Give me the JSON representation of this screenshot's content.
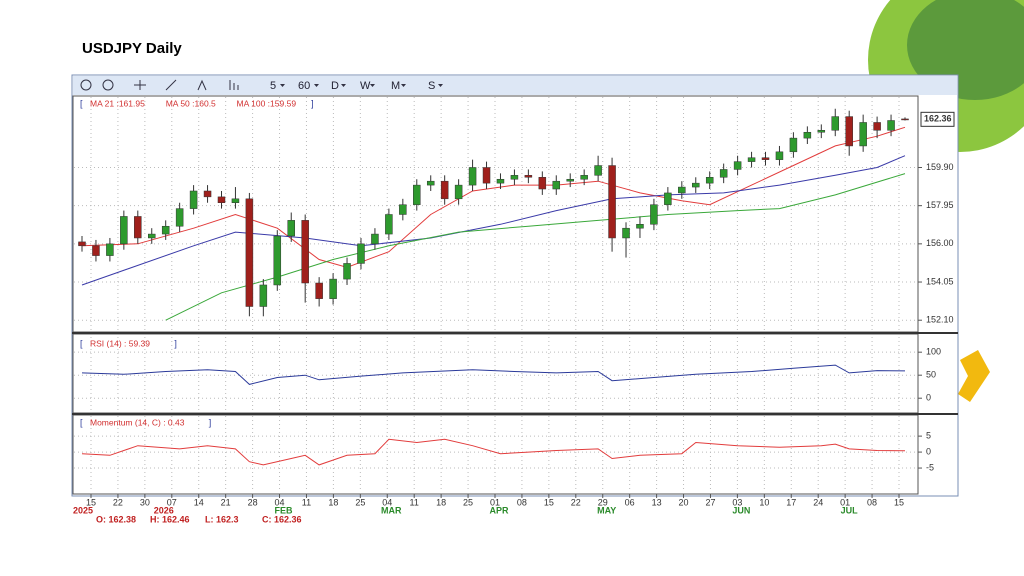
{
  "title": "USDJPY Daily",
  "toolbar": [
    "5",
    "60",
    "D",
    "W",
    "M",
    "S"
  ],
  "brackets": [
    "[",
    "]"
  ],
  "readout": [
    "O: 162.38",
    "H: 162.46",
    "L: 162.3",
    "C: 162.36"
  ],
  "x_axis": {
    "days": [
      "15",
      "22",
      "30",
      "07",
      "14",
      "21",
      "28",
      "04",
      "11",
      "18",
      "25",
      "04",
      "11",
      "18",
      "25",
      "01",
      "08",
      "15",
      "22",
      "29",
      "06",
      "13",
      "20",
      "27",
      "03",
      "10",
      "17",
      "24",
      "01",
      "08",
      "15"
    ],
    "months": [
      "2025",
      null,
      null,
      "2026",
      null,
      null,
      null,
      "FEB",
      null,
      null,
      null,
      "MAR",
      null,
      null,
      null,
      "APR",
      null,
      null,
      null,
      "MAY",
      null,
      null,
      null,
      null,
      "JUN",
      null,
      null,
      null,
      "JUL",
      null,
      null
    ]
  },
  "chart_data": [
    {
      "type": "candlestick",
      "xlim": [
        0,
        59
      ],
      "ylim": [
        151.6,
        163.5
      ],
      "grid": true,
      "up_color": "#2e9a2e",
      "down_color": "#a0201c",
      "yticks": [
        {
          "value": 152.1,
          "label": "152.10"
        },
        {
          "value": 154.05,
          "label": "154.05"
        },
        {
          "value": 156,
          "label": "156.00"
        },
        {
          "value": 157.95,
          "label": "157.95"
        },
        {
          "value": 159.9,
          "label": "159.90"
        }
      ],
      "last_value": 162.36,
      "open": [
        156.1,
        155.9,
        155.4,
        156.0,
        157.4,
        156.3,
        156.5,
        156.9,
        157.8,
        158.7,
        158.4,
        158.1,
        158.3,
        152.8,
        153.9,
        156.4,
        157.2,
        154.0,
        153.2,
        154.2,
        155.0,
        156.0,
        156.5,
        157.5,
        158.0,
        159.0,
        159.2,
        158.3,
        159.0,
        159.9,
        159.1,
        159.3,
        159.5,
        159.4,
        158.8,
        159.2,
        159.3,
        159.5,
        160.0,
        156.3,
        156.8,
        157.0,
        158.0,
        158.6,
        158.9,
        159.1,
        159.4,
        159.8,
        160.2,
        160.4,
        160.3,
        160.7,
        161.4,
        161.7,
        161.8,
        162.5,
        161.0,
        162.2,
        161.8,
        162.38
      ],
      "high": [
        156.4,
        156.2,
        156.3,
        157.7,
        157.7,
        156.8,
        157.2,
        158.1,
        159.0,
        159.0,
        158.7,
        158.9,
        158.6,
        154.2,
        156.7,
        157.6,
        157.5,
        154.3,
        154.5,
        155.3,
        156.3,
        156.8,
        157.8,
        158.3,
        159.3,
        159.5,
        159.5,
        159.3,
        160.3,
        160.2,
        159.6,
        159.8,
        159.8,
        159.7,
        159.5,
        159.6,
        159.8,
        160.5,
        160.4,
        157.1,
        157.4,
        158.3,
        158.9,
        159.2,
        159.4,
        159.7,
        160.1,
        160.5,
        160.7,
        160.7,
        161.0,
        161.7,
        162.0,
        162.1,
        162.9,
        162.8,
        162.6,
        162.5,
        162.6,
        162.46
      ],
      "low": [
        155.6,
        155.1,
        155.1,
        155.7,
        156.0,
        156.0,
        156.2,
        156.6,
        157.5,
        158.1,
        157.8,
        157.8,
        152.3,
        152.3,
        153.6,
        156.1,
        153.0,
        152.8,
        152.9,
        153.9,
        154.7,
        155.7,
        156.2,
        157.2,
        157.7,
        158.7,
        158.0,
        158.0,
        158.7,
        158.8,
        158.8,
        159.0,
        159.1,
        158.5,
        158.5,
        158.9,
        159.0,
        159.2,
        155.6,
        155.3,
        156.3,
        156.7,
        157.7,
        158.3,
        158.6,
        158.8,
        159.1,
        159.5,
        159.9,
        160.0,
        160.0,
        160.4,
        161.1,
        161.4,
        161.5,
        160.5,
        160.7,
        161.4,
        161.5,
        162.3
      ],
      "close": [
        155.9,
        155.4,
        156.0,
        157.4,
        156.3,
        156.5,
        156.9,
        157.8,
        158.7,
        158.4,
        158.1,
        158.3,
        152.8,
        153.9,
        156.4,
        157.2,
        154.0,
        153.2,
        154.2,
        155.0,
        156.0,
        156.5,
        157.5,
        158.0,
        159.0,
        159.2,
        158.3,
        159.0,
        159.9,
        159.1,
        159.3,
        159.5,
        159.4,
        158.8,
        159.2,
        159.3,
        159.5,
        160.0,
        156.3,
        156.8,
        157.0,
        158.0,
        158.6,
        158.9,
        159.1,
        159.4,
        159.8,
        160.2,
        160.4,
        160.3,
        160.7,
        161.4,
        161.7,
        161.8,
        162.5,
        161.0,
        162.2,
        161.8,
        162.3,
        162.36
      ],
      "lines": [
        {
          "name": "MA 21 :161.95",
          "color": "#e23c3c",
          "x": [
            0,
            4,
            8,
            11,
            14,
            17,
            19,
            22,
            25,
            28,
            31,
            34,
            37,
            40,
            43,
            45,
            48,
            51,
            54,
            57,
            59
          ],
          "values": [
            155.9,
            156.0,
            156.8,
            157.5,
            156.8,
            155.2,
            154.8,
            155.6,
            157.5,
            158.7,
            159.0,
            159.0,
            159.2,
            158.6,
            158.2,
            158.0,
            159.0,
            160.0,
            161.0,
            161.5,
            161.95
          ]
        },
        {
          "name": "MA 50 :160.5",
          "color": "#3a3aa8",
          "x": [
            0,
            8,
            11,
            16,
            20,
            25,
            30,
            34,
            38,
            42,
            46,
            50,
            54,
            57,
            59
          ],
          "values": [
            153.9,
            155.9,
            156.6,
            156.3,
            155.9,
            156.3,
            157.0,
            157.7,
            158.3,
            158.5,
            158.6,
            159.0,
            159.5,
            159.9,
            160.5
          ]
        },
        {
          "name": "MA 100 :159.59",
          "color": "#3aa83a",
          "x": [
            6,
            10,
            14,
            18,
            22,
            27,
            32,
            37,
            42,
            47,
            50,
            54,
            59
          ],
          "values": [
            152.1,
            153.5,
            154.3,
            155.2,
            155.9,
            156.6,
            156.9,
            157.2,
            157.5,
            157.7,
            157.8,
            158.5,
            159.59
          ]
        }
      ]
    },
    {
      "type": "line",
      "xlim": [
        0,
        59
      ],
      "ylim": [
        -30,
        133
      ],
      "yticks": [
        100,
        50,
        0
      ],
      "grid": true,
      "series": [
        {
          "name": "RSI (14) : 59.39",
          "color": "#2b3a9a",
          "x": [
            0,
            3,
            6,
            9,
            11,
            12,
            14,
            16,
            17,
            20,
            23,
            28,
            31,
            34,
            37,
            38,
            41,
            44,
            48,
            51,
            54,
            55,
            57,
            59
          ],
          "values": [
            55,
            52,
            58,
            62,
            58,
            30,
            45,
            50,
            40,
            48,
            55,
            62,
            58,
            55,
            58,
            38,
            45,
            52,
            58,
            65,
            72,
            55,
            60,
            59.39
          ]
        }
      ]
    },
    {
      "type": "line",
      "xlim": [
        0,
        59
      ],
      "ylim": [
        -12.5,
        11.3
      ],
      "yticks": [
        5,
        0,
        -5
      ],
      "grid": true,
      "series": [
        {
          "name": "Momentum (14, C) : 0.43",
          "color": "#e23c3c",
          "x": [
            0,
            2,
            4,
            7,
            9,
            11,
            12,
            13,
            15,
            16,
            17,
            19,
            21,
            22,
            24,
            26,
            28,
            30,
            32,
            34,
            37,
            38,
            40,
            43,
            44,
            47,
            50,
            53,
            54,
            55,
            57,
            59
          ],
          "values": [
            -0.5,
            -1,
            2,
            1,
            2,
            1,
            -3,
            -4,
            -2,
            -1,
            -4,
            -1,
            -0.5,
            4,
            3,
            4,
            2,
            -0.5,
            0,
            0.5,
            1,
            -2,
            -1,
            -0.5,
            3,
            2,
            1.5,
            2,
            2.5,
            1,
            0.5,
            0.43
          ]
        }
      ]
    }
  ]
}
